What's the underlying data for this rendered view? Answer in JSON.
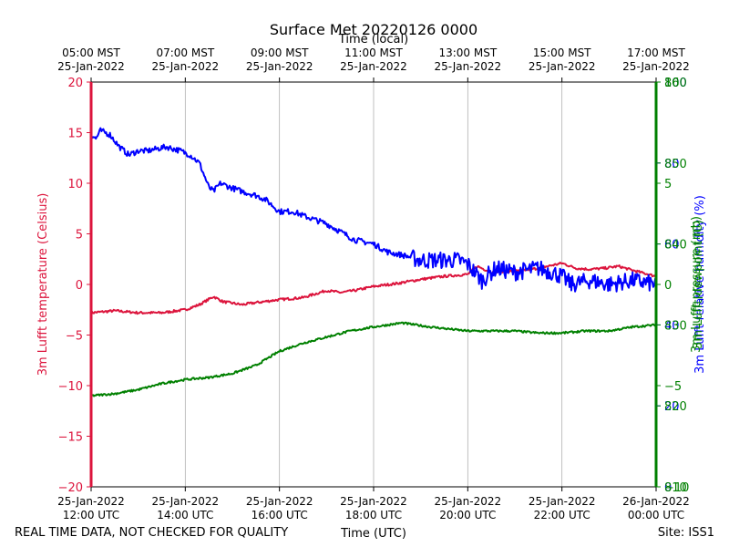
{
  "chart_data": {
    "type": "line",
    "title": "Surface Met 20220126 0000",
    "top_xlabel": "Time (local)",
    "bottom_xlabel": "Time (UTC)",
    "footer_left": "REAL TIME DATA, NOT CHECKED FOR QUALITY",
    "footer_right": "Site: ISS1",
    "x_range_hours_utc": [
      12,
      24
    ],
    "top_ticks": [
      {
        "h": 12,
        "line1": "05:00 MST",
        "line2": "25-Jan-2022"
      },
      {
        "h": 14,
        "line1": "07:00 MST",
        "line2": "25-Jan-2022"
      },
      {
        "h": 16,
        "line1": "09:00 MST",
        "line2": "25-Jan-2022"
      },
      {
        "h": 18,
        "line1": "11:00 MST",
        "line2": "25-Jan-2022"
      },
      {
        "h": 20,
        "line1": "13:00 MST",
        "line2": "25-Jan-2022"
      },
      {
        "h": 22,
        "line1": "15:00 MST",
        "line2": "25-Jan-2022"
      },
      {
        "h": 24,
        "line1": "17:00 MST",
        "line2": "25-Jan-2022"
      }
    ],
    "bottom_ticks": [
      {
        "h": 12,
        "line1": "25-Jan-2022",
        "line2": "12:00 UTC"
      },
      {
        "h": 14,
        "line1": "25-Jan-2022",
        "line2": "14:00 UTC"
      },
      {
        "h": 16,
        "line1": "25-Jan-2022",
        "line2": "16:00 UTC"
      },
      {
        "h": 18,
        "line1": "25-Jan-2022",
        "line2": "18:00 UTC"
      },
      {
        "h": 20,
        "line1": "25-Jan-2022",
        "line2": "20:00 UTC"
      },
      {
        "h": 22,
        "line1": "25-Jan-2022",
        "line2": "22:00 UTC"
      },
      {
        "h": 24,
        "line1": "26-Jan-2022",
        "line2": "00:00 UTC"
      }
    ],
    "left_axis": {
      "label": "3m Lufft temperature (Celsius)",
      "color": "#dc143c",
      "ylim": [
        -20,
        20
      ],
      "ticks": [
        20,
        15,
        10,
        5,
        0,
        -5,
        -10,
        -15,
        -20
      ],
      "tick_labels": [
        "20",
        "15",
        "10",
        "5",
        "0",
        "−5",
        "−10",
        "−15",
        "−20"
      ]
    },
    "right_axes": [
      {
        "label": "3m Lufft relative humidity (%)",
        "color": "#0000ff",
        "ylim": [
          0,
          100
        ],
        "ticks": [
          0,
          20,
          40,
          60,
          80,
          100
        ],
        "tick_labels": [
          "0",
          "20",
          "40",
          "60",
          "80",
          "100"
        ]
      },
      {
        "label": "3m Lufft dewpoint (C)",
        "color": "#008000",
        "ylim": [
          -10,
          10
        ],
        "ticks": [
          -10,
          -5,
          0,
          5,
          10
        ],
        "tick_labels": [
          "−10",
          "−5",
          "0",
          "5",
          "10"
        ]
      },
      {
        "label": "3m Lufft pressure (mb)",
        "color": "#008000",
        "ylim": [
          810,
          860
        ],
        "ticks": [
          810,
          820,
          830,
          840,
          850,
          860
        ],
        "tick_labels": [
          "810",
          "820",
          "830",
          "840",
          "850",
          "860"
        ]
      }
    ],
    "series": [
      {
        "name": "temperature",
        "color": "#dc143c",
        "axis": "left",
        "x": [
          12.0,
          12.5,
          13.0,
          13.5,
          14.0,
          14.3,
          14.6,
          14.8,
          15.2,
          15.5,
          16.0,
          16.5,
          17.0,
          17.3,
          17.6,
          18.0,
          18.5,
          19.0,
          19.5,
          20.0,
          20.2,
          20.5,
          21.0,
          21.5,
          21.8,
          22.0,
          22.3,
          22.6,
          22.9,
          23.2,
          23.5,
          24.0
        ],
        "y": [
          -2.8,
          -2.6,
          -2.8,
          -2.8,
          -2.5,
          -2.0,
          -1.2,
          -1.7,
          -2.0,
          -1.8,
          -1.5,
          -1.3,
          -0.6,
          -0.8,
          -0.6,
          -0.2,
          0.1,
          0.5,
          0.8,
          1.0,
          1.8,
          1.2,
          1.3,
          1.6,
          1.9,
          2.1,
          1.6,
          1.5,
          1.6,
          1.8,
          1.4,
          0.8
        ],
        "noise": 0.12
      },
      {
        "name": "relative humidity",
        "color": "#0000ff",
        "axis": "rh",
        "x": [
          12.0,
          12.1,
          12.2,
          12.4,
          12.6,
          12.8,
          13.0,
          13.2,
          13.6,
          13.9,
          14.1,
          14.3,
          14.5,
          14.6,
          14.75,
          14.95,
          15.2,
          15.5,
          15.7,
          16.0,
          16.3,
          16.5,
          17.0,
          17.3,
          17.6,
          18.0,
          18.3,
          18.7,
          19.0,
          19.4,
          19.8,
          20.0,
          20.3,
          20.6,
          21.0,
          21.5,
          21.8,
          22.0,
          22.2,
          22.6,
          23.0,
          23.5,
          24.0
        ],
        "y": [
          87,
          86,
          88,
          87,
          84,
          82,
          83,
          83,
          84,
          83,
          82,
          80,
          74,
          73,
          75,
          74,
          73,
          72,
          71,
          68,
          68,
          67,
          65,
          63,
          61,
          60,
          58,
          57,
          56,
          56,
          56,
          55,
          51,
          54,
          53,
          54,
          53,
          52,
          50,
          51,
          50,
          51,
          50
        ],
        "noise": 0.7
      },
      {
        "name": "dewpoint",
        "color": "#008000",
        "axis": "dp",
        "x": [
          12.0,
          12.5,
          13.0,
          13.5,
          14.0,
          14.5,
          15.0,
          15.5,
          16.0,
          16.5,
          17.0,
          17.5,
          18.0,
          18.3,
          18.6,
          18.9,
          19.2,
          19.6,
          20.0,
          20.5,
          21.0,
          21.5,
          22.0,
          22.5,
          23.0,
          23.5,
          24.0
        ],
        "y": [
          -5.5,
          -5.4,
          -5.2,
          -4.9,
          -4.7,
          -4.6,
          -4.4,
          -4.0,
          -3.3,
          -2.9,
          -2.6,
          -2.3,
          -2.1,
          -2.0,
          -1.9,
          -2.0,
          -2.1,
          -2.2,
          -2.3,
          -2.3,
          -2.3,
          -2.4,
          -2.4,
          -2.3,
          -2.3,
          -2.1,
          -2.0
        ],
        "noise": 0.05
      }
    ]
  }
}
